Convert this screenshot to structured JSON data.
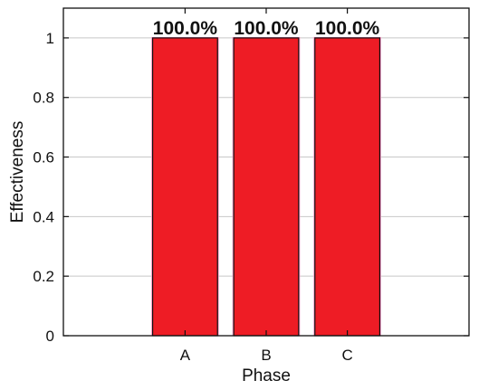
{
  "chart_data": {
    "type": "bar",
    "categories": [
      "A",
      "B",
      "C"
    ],
    "values": [
      1.0,
      1.0,
      1.0
    ],
    "data_labels": [
      "100.0%",
      "100.0%",
      "100.0%"
    ],
    "title": "",
    "xlabel": "Phase",
    "ylabel": "Effectiveness",
    "ylim": [
      0,
      1.1
    ],
    "yticks": [
      0,
      0.2,
      0.4,
      0.6,
      0.8,
      1
    ],
    "ytick_labels": [
      "0",
      "0.2",
      "0.4",
      "0.6",
      "0.8",
      "1"
    ],
    "grid": true,
    "legend": "none",
    "colors": {
      "bar_fill": "#ee1c25",
      "bar_edge": "#111111",
      "bar_halo": "#ff9cc8",
      "grid": "#c8c8c8",
      "axis": "#111111"
    }
  }
}
